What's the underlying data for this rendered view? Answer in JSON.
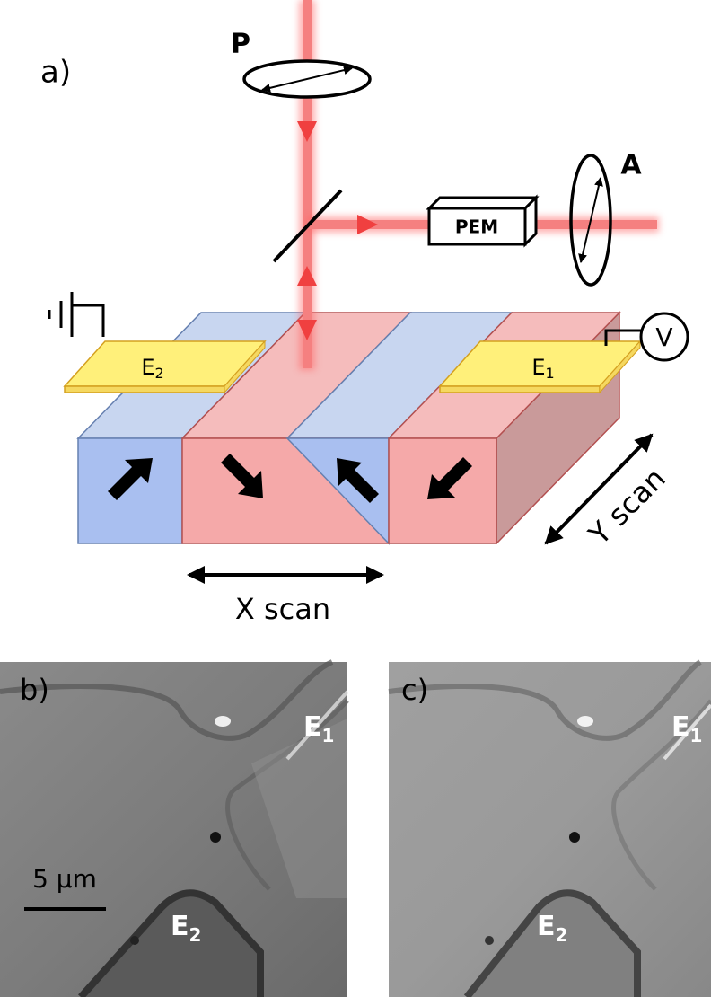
{
  "panel_a": {
    "label": "a)",
    "polarizer": "P",
    "analyzer": "A",
    "modulator": "PEM",
    "electrode_left": {
      "main": "E",
      "sub": "2"
    },
    "electrode_right": {
      "main": "E",
      "sub": "1"
    },
    "voltmeter": "V",
    "x_scan": "X scan",
    "y_scan": "Y scan"
  },
  "panel_b": {
    "label": "b)",
    "electrode_top": {
      "main": "E",
      "sub": "1"
    },
    "electrode_bottom": {
      "main": "E",
      "sub": "2"
    },
    "scale_bar": "5 μm"
  },
  "panel_c": {
    "label": "c)",
    "electrode_top": {
      "main": "E",
      "sub": "1"
    },
    "electrode_bottom": {
      "main": "E",
      "sub": "2"
    }
  }
}
